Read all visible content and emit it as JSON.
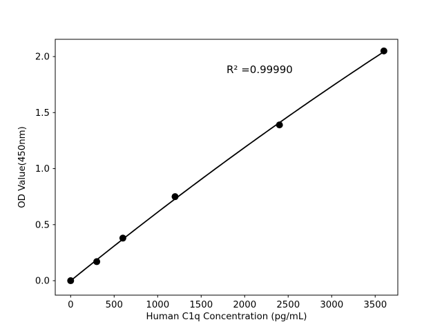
{
  "chart_data": {
    "type": "scatter",
    "title": "",
    "xlabel": "Human C1q Concentration (pg/mL)",
    "ylabel": "OD Value(450nm)",
    "annotation": "R² =0.99990",
    "x": [
      0,
      300,
      600,
      1200,
      2400,
      3600
    ],
    "y": [
      0.0,
      0.17,
      0.38,
      0.75,
      1.39,
      2.05
    ],
    "fit": "quadratic",
    "x_ticks": [
      0,
      500,
      1000,
      1500,
      2000,
      2500,
      3000,
      3500
    ],
    "x_tick_labels": [
      "0",
      "500",
      "1000",
      "1500",
      "2000",
      "2500",
      "3000",
      "3500"
    ],
    "y_ticks": [
      0.0,
      0.5,
      1.0,
      1.5,
      2.0
    ],
    "y_tick_labels": [
      "0.0",
      "0.5",
      "1.0",
      "1.5",
      "2.0"
    ],
    "xlim": [
      -177,
      3760
    ],
    "ylim": [
      -0.129,
      2.154
    ],
    "grid": false,
    "legend": "none",
    "colors": {
      "marker": "#000000",
      "line": "#000000",
      "axis": "#000000",
      "background": "#ffffff"
    }
  }
}
